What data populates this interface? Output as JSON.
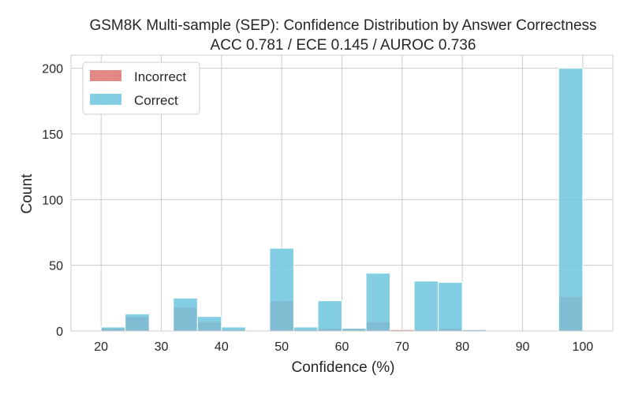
{
  "chart_data": {
    "type": "bar",
    "title": "GSM8K Multi-sample (SEP): Confidence Distribution by Answer Correctness",
    "subtitle": "ACC 0.781 / ECE 0.145 / AUROC 0.736",
    "xlabel": "Confidence (%)",
    "ylabel": "Count",
    "xlim": [
      15,
      105
    ],
    "ylim": [
      0,
      210
    ],
    "xticks": [
      20,
      30,
      40,
      50,
      60,
      70,
      80,
      90,
      100
    ],
    "yticks": [
      0,
      50,
      100,
      150,
      200
    ],
    "grid": true,
    "legend_position": "top-left",
    "bin_width": 4,
    "bins": [
      20,
      24,
      28,
      32,
      36,
      40,
      44,
      48,
      52,
      56,
      60,
      64,
      68,
      72,
      76,
      80,
      84,
      88,
      92,
      96
    ],
    "series": [
      {
        "name": "Incorrect",
        "color": "#e07b77",
        "values": [
          2,
          11,
          0,
          18,
          7,
          1,
          0,
          23,
          1,
          2,
          2,
          7,
          1,
          1,
          2,
          1,
          0,
          0,
          0,
          26
        ]
      },
      {
        "name": "Correct",
        "color": "#6fc6df",
        "values": [
          3,
          13,
          0,
          25,
          11,
          3,
          0,
          63,
          3,
          23,
          2,
          44,
          0,
          38,
          37,
          1,
          0,
          0,
          0,
          200
        ]
      }
    ]
  }
}
